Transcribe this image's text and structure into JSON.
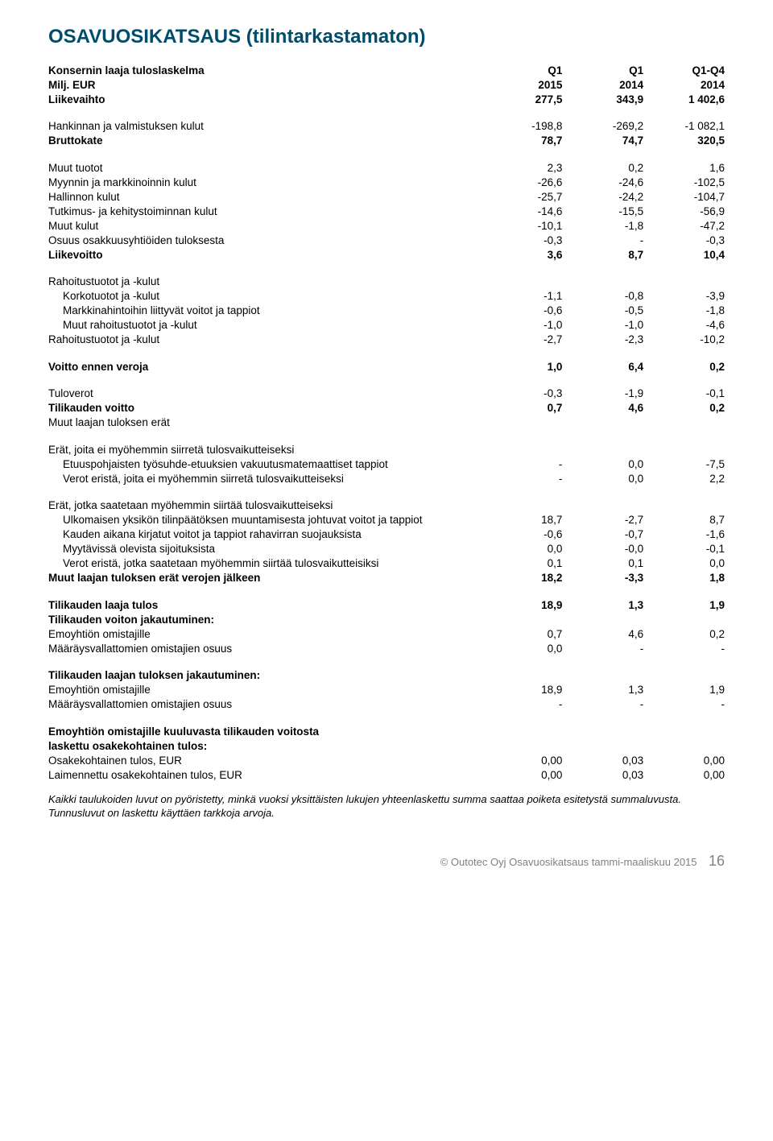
{
  "title": "OSAVUOSIKATSAUS (tilintarkastamaton)",
  "header": {
    "col1_label": "Konsernin laaja tuloslaskelma",
    "col2_label": "Milj. EUR",
    "h1a": "Q1",
    "h1b": "2015",
    "h2a": "Q1",
    "h2b": "2014",
    "h3a": "Q1-Q4",
    "h3b": "2014"
  },
  "rows": [
    {
      "label": "Liikevaihto",
      "v1": "277,5",
      "v2": "343,9",
      "v3": "1 402,6",
      "bold": true
    },
    {
      "spacer": true
    },
    {
      "label": "Hankinnan ja valmistuksen kulut",
      "v1": "-198,8",
      "v2": "-269,2",
      "v3": "-1 082,1"
    },
    {
      "label": "Bruttokate",
      "v1": "78,7",
      "v2": "74,7",
      "v3": "320,5",
      "bold": true
    },
    {
      "spacer": true
    },
    {
      "label": "Muut tuotot",
      "v1": "2,3",
      "v2": "0,2",
      "v3": "1,6"
    },
    {
      "label": "Myynnin ja markkinoinnin kulut",
      "v1": "-26,6",
      "v2": "-24,6",
      "v3": "-102,5"
    },
    {
      "label": "Hallinnon kulut",
      "v1": "-25,7",
      "v2": "-24,2",
      "v3": "-104,7"
    },
    {
      "label": "Tutkimus- ja kehitystoiminnan kulut",
      "v1": "-14,6",
      "v2": "-15,5",
      "v3": "-56,9"
    },
    {
      "label": "Muut kulut",
      "v1": "-10,1",
      "v2": "-1,8",
      "v3": "-47,2"
    },
    {
      "label": "Osuus osakkuusyhtiöiden tuloksesta",
      "v1": "-0,3",
      "v2": "-",
      "v3": "-0,3"
    },
    {
      "label": "Liikevoitto",
      "v1": "3,6",
      "v2": "8,7",
      "v3": "10,4",
      "bold": true
    },
    {
      "spacer": true
    },
    {
      "label": "Rahoitustuotot ja -kulut"
    },
    {
      "label": "Korkotuotot ja -kulut",
      "v1": "-1,1",
      "v2": "-0,8",
      "v3": "-3,9",
      "indent": true
    },
    {
      "label": "Markkinahintoihin liittyvät voitot ja tappiot",
      "v1": "-0,6",
      "v2": "-0,5",
      "v3": "-1,8",
      "indent": true
    },
    {
      "label": "Muut rahoitustuotot ja -kulut",
      "v1": "-1,0",
      "v2": "-1,0",
      "v3": "-4,6",
      "indent": true
    },
    {
      "label": "Rahoitustuotot ja -kulut",
      "v1": "-2,7",
      "v2": "-2,3",
      "v3": "-10,2"
    },
    {
      "spacer": true
    },
    {
      "label": "Voitto ennen veroja",
      "v1": "1,0",
      "v2": "6,4",
      "v3": "0,2",
      "bold": true
    },
    {
      "spacer": true
    },
    {
      "label": "Tuloverot",
      "v1": "-0,3",
      "v2": "-1,9",
      "v3": "-0,1"
    },
    {
      "label": "Tilikauden voitto",
      "v1": "0,7",
      "v2": "4,6",
      "v3": "0,2",
      "bold": true
    },
    {
      "label": "Muut laajan tuloksen erät"
    },
    {
      "spacer": true
    },
    {
      "label": "Erät, joita ei myöhemmin siirretä tulosvaikutteiseksi"
    },
    {
      "label": "Etuuspohjaisten työsuhde-etuuksien vakuutusmatemaattiset tappiot",
      "v1": "-",
      "v2": "0,0",
      "v3": "-7,5",
      "indent": true
    },
    {
      "label": "Verot eristä, joita ei myöhemmin siirretä tulosvaikutteiseksi",
      "v1": "-",
      "v2": "0,0",
      "v3": "2,2",
      "indent": true
    },
    {
      "spacer": true
    },
    {
      "label": "Erät, jotka saatetaan myöhemmin siirtää tulosvaikutteiseksi"
    },
    {
      "label": "Ulkomaisen yksikön tilinpäätöksen muuntamisesta johtuvat voitot ja tappiot",
      "v1": "18,7",
      "v2": "-2,7",
      "v3": "8,7",
      "indent": true
    },
    {
      "label": "Kauden aikana kirjatut voitot ja tappiot rahavirran suojauksista",
      "v1": "-0,6",
      "v2": "-0,7",
      "v3": "-1,6",
      "indent": true
    },
    {
      "label": "Myytävissä olevista sijoituksista",
      "v1": "0,0",
      "v2": "-0,0",
      "v3": "-0,1",
      "indent": true
    },
    {
      "label": "Verot eristä, jotka saatetaan myöhemmin siirtää tulosvaikutteisiksi",
      "v1": "0,1",
      "v2": "0,1",
      "v3": "0,0",
      "indent": true
    },
    {
      "label": "Muut laajan tuloksen erät verojen jälkeen",
      "v1": "18,2",
      "v2": "-3,3",
      "v3": "1,8",
      "bold": true
    },
    {
      "spacer": true
    },
    {
      "label": "Tilikauden laaja tulos",
      "v1": "18,9",
      "v2": "1,3",
      "v3": "1,9",
      "bold": true
    },
    {
      "label": "Tilikauden voiton jakautuminen:",
      "bold": true
    },
    {
      "label": "Emoyhtiön omistajille",
      "v1": "0,7",
      "v2": "4,6",
      "v3": "0,2"
    },
    {
      "label": "Määräysvallattomien omistajien osuus",
      "v1": "0,0",
      "v2": "-",
      "v3": "-"
    },
    {
      "spacer": true
    },
    {
      "label": "Tilikauden laajan tuloksen jakautuminen:",
      "bold": true
    },
    {
      "label": "Emoyhtiön omistajille",
      "v1": "18,9",
      "v2": "1,3",
      "v3": "1,9"
    },
    {
      "label": "Määräysvallattomien omistajien osuus",
      "v1": "-",
      "v2": "-",
      "v3": "-"
    },
    {
      "spacer": true
    },
    {
      "label": "Emoyhtiön omistajille kuuluvasta tilikauden voitosta",
      "bold": true
    },
    {
      "label": "laskettu osakekohtainen tulos:",
      "bold": true
    },
    {
      "label": "Osakekohtainen tulos, EUR",
      "v1": "0,00",
      "v2": "0,03",
      "v3": "0,00"
    },
    {
      "label": "Laimennettu osakekohtainen tulos, EUR",
      "v1": "0,00",
      "v2": "0,03",
      "v3": "0,00"
    }
  ],
  "footnote": "Kaikki taulukoiden luvut on pyöristetty, minkä vuoksi yksittäisten lukujen yhteenlaskettu summa saattaa poiketa esitetystä summaluvusta. Tunnusluvut on laskettu käyttäen tarkkoja arvoja.",
  "footer": {
    "text": "© Outotec Oyj   Osavuosikatsaus tammi-maaliskuu 2015",
    "page": "16"
  }
}
